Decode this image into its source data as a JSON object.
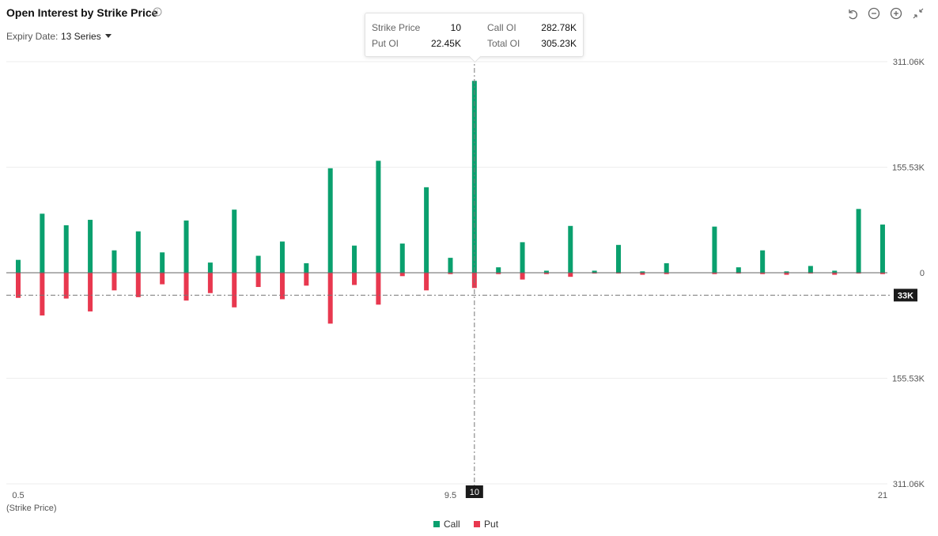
{
  "header": {
    "title": "Open Interest by Strike Price",
    "expiry_label": "Expiry Date:",
    "expiry_value": "13 Series"
  },
  "toolbar": {
    "icons": [
      "reset-icon",
      "zoom-out-icon",
      "zoom-in-icon",
      "collapse-icon"
    ]
  },
  "tooltip": {
    "strike_label": "Strike Price",
    "strike_value": "10",
    "call_label": "Call OI",
    "call_value": "282.78K",
    "put_label": "Put OI",
    "put_value": "22.45K",
    "total_label": "Total OI",
    "total_value": "305.23K"
  },
  "crosshair": {
    "x_label": "10",
    "y_label": "33K",
    "y_value": -33000
  },
  "legend": {
    "call": "Call",
    "put": "Put"
  },
  "colors": {
    "call": "#0aa06e",
    "put": "#e8384f",
    "text": "#333333",
    "grid": "#eeeeee"
  },
  "chart_data": {
    "type": "bar",
    "xlabel": "(Strike Price)",
    "ylim": [
      -311060,
      311060
    ],
    "y_ticks": [
      {
        "value": 311060,
        "label": "311.06K"
      },
      {
        "value": 155530,
        "label": "155.53K"
      },
      {
        "value": 0,
        "label": "0"
      },
      {
        "value": -155530,
        "label": "155.53K"
      },
      {
        "value": -311060,
        "label": "311.06K"
      }
    ],
    "x_tick_labels": [
      {
        "index": 0,
        "label": "0.5"
      },
      {
        "index": 18,
        "label": "9.5"
      },
      {
        "index": 36,
        "label": "21"
      }
    ],
    "x_count": 37,
    "highlight_index": 19,
    "series": [
      {
        "name": "Call",
        "values": [
          19000,
          87000,
          70000,
          78000,
          33000,
          61000,
          30000,
          77000,
          15000,
          93000,
          25000,
          46000,
          14000,
          154000,
          40000,
          165000,
          43000,
          126000,
          22000,
          282780,
          8000,
          45000,
          3000,
          69000,
          3000,
          41000,
          2000,
          14000,
          0,
          68000,
          8000,
          33000,
          2000,
          10000,
          3000,
          94000,
          71000
        ]
      },
      {
        "name": "Put",
        "values": [
          37000,
          63000,
          38000,
          57000,
          26000,
          36000,
          17000,
          41000,
          30000,
          51000,
          21000,
          39000,
          19000,
          75000,
          18000,
          47000,
          5000,
          26000,
          2000,
          22450,
          2000,
          10000,
          2000,
          6000,
          1000,
          1000,
          3000,
          2000,
          0,
          2000,
          1000,
          2000,
          3000,
          1000,
          3000,
          1000,
          2000
        ]
      }
    ]
  }
}
